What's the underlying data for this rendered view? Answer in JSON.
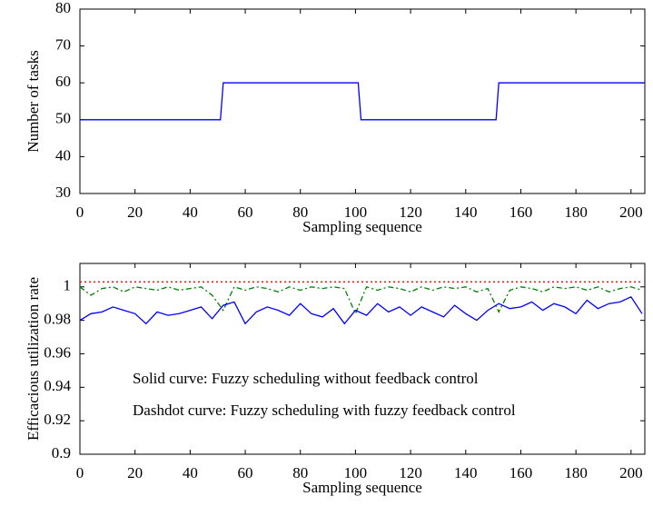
{
  "chart_data": [
    {
      "type": "line",
      "xlabel": "Sampling sequence",
      "ylabel": "Number of tasks",
      "xlim": [
        0,
        205
      ],
      "ylim": [
        30,
        80
      ],
      "xticks": [
        0,
        20,
        40,
        60,
        80,
        100,
        120,
        140,
        160,
        180,
        200
      ],
      "yticks": [
        30,
        40,
        50,
        60,
        70,
        80
      ],
      "grid": false,
      "series": [
        {
          "color": "#0000ff",
          "style": "solid",
          "x": [
            0,
            51,
            52,
            101,
            102,
            151,
            152,
            205
          ],
          "values": [
            50,
            50,
            60,
            60,
            50,
            50,
            60,
            60
          ]
        }
      ]
    },
    {
      "type": "line",
      "xlabel": "Sampling sequence",
      "ylabel": "Efficacious utilization rate",
      "xlim": [
        0,
        205
      ],
      "ylim": [
        0.9,
        1.014
      ],
      "xticks": [
        0,
        20,
        40,
        60,
        80,
        100,
        120,
        140,
        160,
        180,
        200
      ],
      "yticks": [
        0.9,
        0.92,
        0.94,
        0.96,
        0.98,
        1
      ],
      "grid": false,
      "annotations": [
        "Solid curve: Fuzzy scheduling without feedback control",
        "Dashdot curve: Fuzzy scheduling with fuzzy feedback control"
      ],
      "series": [
        {
          "color": "#ff0000",
          "style": "dotted",
          "x": [
            0,
            204
          ],
          "values": [
            1.003,
            1.003
          ]
        },
        {
          "color": "#008000",
          "style": "dashdot",
          "x": [
            0,
            4,
            8,
            12,
            16,
            20,
            24,
            28,
            32,
            36,
            40,
            44,
            48,
            52,
            56,
            60,
            64,
            68,
            72,
            76,
            80,
            84,
            88,
            92,
            96,
            100,
            104,
            108,
            112,
            116,
            120,
            124,
            128,
            132,
            136,
            140,
            144,
            148,
            152,
            156,
            160,
            164,
            168,
            172,
            176,
            180,
            184,
            188,
            192,
            196,
            200,
            204
          ],
          "values": [
            1.0,
            0.995,
            0.999,
            1.0,
            0.997,
            1.0,
            0.999,
            0.998,
            1.0,
            0.998,
            0.999,
            1.0,
            0.995,
            0.986,
            1.0,
            0.998,
            1.0,
            0.999,
            0.997,
            1.0,
            0.998,
            1.0,
            0.999,
            1.0,
            0.999,
            0.984,
            1.0,
            0.998,
            1.0,
            0.999,
            0.997,
            1.0,
            0.998,
            1.0,
            0.999,
            1.0,
            0.997,
            0.999,
            0.985,
            0.998,
            1.0,
            0.999,
            0.997,
            1.0,
            0.999,
            1.0,
            0.998,
            1.0,
            0.997,
            0.999,
            1.0,
            0.998
          ]
        },
        {
          "color": "#0000ff",
          "style": "solid",
          "x": [
            0,
            4,
            8,
            12,
            16,
            20,
            24,
            28,
            32,
            36,
            40,
            44,
            48,
            52,
            56,
            60,
            64,
            68,
            72,
            76,
            80,
            84,
            88,
            92,
            96,
            100,
            104,
            108,
            112,
            116,
            120,
            124,
            128,
            132,
            136,
            140,
            144,
            148,
            152,
            156,
            160,
            164,
            168,
            172,
            176,
            180,
            184,
            188,
            192,
            196,
            200,
            204
          ],
          "values": [
            0.98,
            0.984,
            0.985,
            0.988,
            0.986,
            0.984,
            0.978,
            0.985,
            0.983,
            0.984,
            0.986,
            0.988,
            0.981,
            0.989,
            0.991,
            0.978,
            0.985,
            0.988,
            0.986,
            0.983,
            0.99,
            0.984,
            0.982,
            0.987,
            0.978,
            0.986,
            0.983,
            0.99,
            0.985,
            0.988,
            0.983,
            0.988,
            0.985,
            0.982,
            0.989,
            0.984,
            0.98,
            0.986,
            0.99,
            0.987,
            0.988,
            0.991,
            0.986,
            0.99,
            0.988,
            0.984,
            0.992,
            0.987,
            0.99,
            0.991,
            0.994,
            0.984
          ]
        }
      ]
    }
  ]
}
